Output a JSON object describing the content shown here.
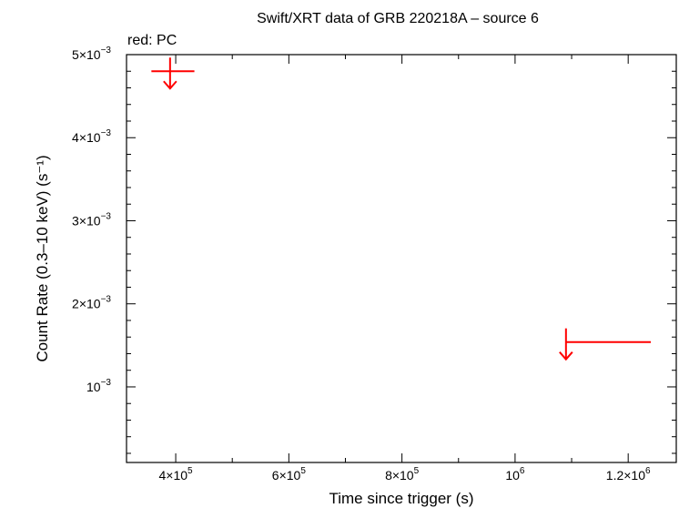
{
  "chart_data": {
    "type": "scatter",
    "title": "Swift/XRT data of GRB 220218A – source 6",
    "subtitle": "red: PC",
    "xlabel": "Time since trigger (s)",
    "ylabel": "Count Rate (0.3–10 keV) (s⁻¹)",
    "xlim": [
      313000,
      1285000
    ],
    "ylim": [
      9e-05,
      0.005
    ],
    "x_ticks": [
      {
        "value": 400000,
        "mantissa": "4×10",
        "exp": "5"
      },
      {
        "value": 600000,
        "mantissa": "6×10",
        "exp": "5"
      },
      {
        "value": 800000,
        "mantissa": "8×10",
        "exp": "5"
      },
      {
        "value": 1000000,
        "mantissa": "10",
        "exp": "6"
      },
      {
        "value": 1200000,
        "mantissa": "1.2×10",
        "exp": "6"
      }
    ],
    "y_ticks": [
      {
        "value": 0.001,
        "mantissa": "10",
        "exp": "−3"
      },
      {
        "value": 0.002,
        "mantissa": "2×10",
        "exp": "−3"
      },
      {
        "value": 0.003,
        "mantissa": "3×10",
        "exp": "−3"
      },
      {
        "value": 0.004,
        "mantissa": "4×10",
        "exp": "−3"
      },
      {
        "value": 0.005,
        "mantissa": "5×10",
        "exp": "−3"
      }
    ],
    "series": [
      {
        "name": "PC",
        "color": "#ff0000",
        "marker": "upper-limit-arrow",
        "points": [
          {
            "x": 390000,
            "x_lo": 357000,
            "x_hi": 433000,
            "y": 0.0048
          },
          {
            "x": 1090000,
            "x_lo": 1090000,
            "x_hi": 1240000,
            "y": 0.00154
          }
        ]
      }
    ],
    "grid": false,
    "legend": "top-left"
  }
}
